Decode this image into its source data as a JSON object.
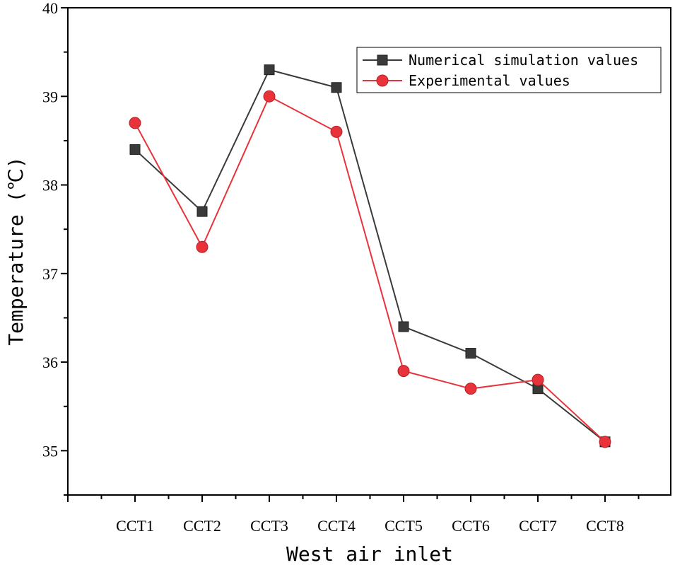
{
  "chart_data": {
    "type": "line",
    "title": "",
    "xlabel": "West air inlet",
    "ylabel": "Temperature (℃)",
    "categories": [
      "CCT1",
      "CCT2",
      "CCT3",
      "CCT4",
      "CCT5",
      "CCT6",
      "CCT7",
      "CCT8"
    ],
    "ylim": [
      34.5,
      40
    ],
    "yticks": [
      35,
      36,
      37,
      38,
      39,
      40
    ],
    "legend_position": "top-right",
    "grid": false,
    "series": [
      {
        "name": "Numerical simulation values",
        "marker": "square",
        "color": "#3a3a3a",
        "values": [
          38.4,
          37.7,
          39.3,
          39.1,
          36.4,
          36.1,
          35.7,
          35.1
        ]
      },
      {
        "name": "Experimental values",
        "marker": "circle",
        "color": "#e8333b",
        "values": [
          38.7,
          37.3,
          39.0,
          38.6,
          35.9,
          35.7,
          35.8,
          35.1
        ]
      }
    ]
  }
}
